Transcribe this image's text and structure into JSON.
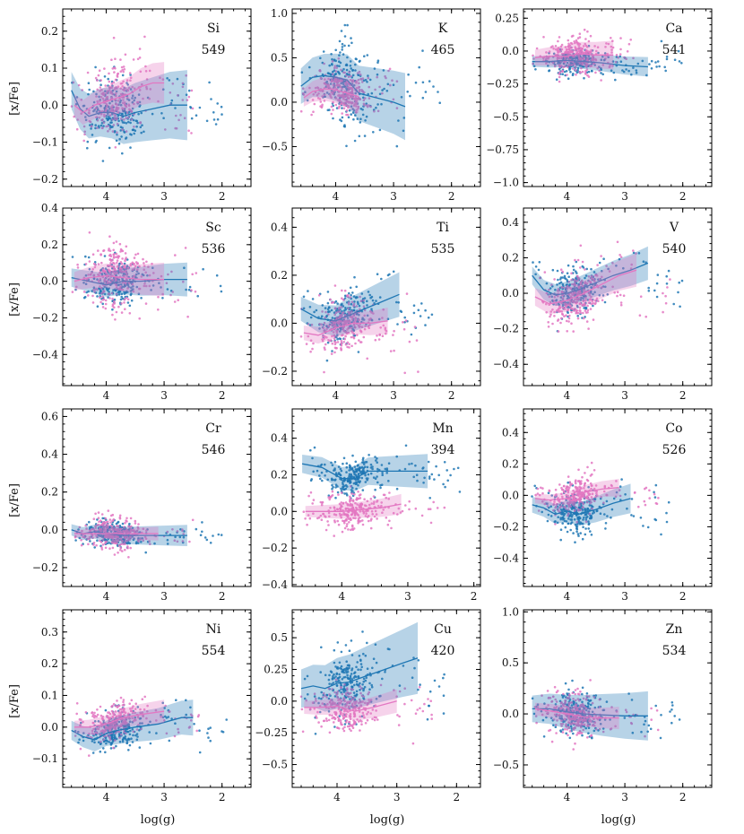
{
  "figure": {
    "xlabel": "log(g)",
    "ylabel": "[x/Fe]",
    "colors": {
      "dwarf": "#e377c2",
      "giant": "#1f77b4",
      "axis": "#000000"
    }
  },
  "chart_data": [
    {
      "type": "scatter",
      "element": "Si",
      "count": "549",
      "xlim": [
        4.75,
        1.5
      ],
      "ylim": [
        -0.22,
        0.26
      ],
      "xticks": [
        4,
        3,
        2
      ],
      "yticks": [
        -0.2,
        -0.1,
        0.0,
        0.1,
        0.2
      ],
      "pink": {
        "line_x": [
          4.55,
          4.4,
          4.2,
          4.0,
          3.8,
          3.6,
          3.4,
          3.2,
          3.0
        ],
        "line_y": [
          0.0,
          -0.02,
          0.0,
          0.01,
          0.02,
          0.03,
          0.05,
          0.06,
          0.06
        ],
        "band": 0.03,
        "cloud": {
          "x": [
            4.6,
            3.0
          ],
          "y": 0.02,
          "sd": 0.05
        }
      },
      "blue": {
        "line_x": [
          4.6,
          4.45,
          4.3,
          4.1,
          3.9,
          3.7,
          3.5,
          3.2,
          2.9,
          2.6
        ],
        "line_y": [
          0.04,
          -0.01,
          -0.03,
          -0.02,
          -0.02,
          -0.03,
          -0.02,
          -0.01,
          0.0,
          0.0
        ],
        "band": 0.05,
        "cloud": {
          "x": [
            4.6,
            2.6
          ],
          "y": -0.02,
          "sd": 0.045
        }
      }
    },
    {
      "type": "scatter",
      "element": "K",
      "count": "465",
      "xlim": [
        4.75,
        1.5
      ],
      "ylim": [
        -0.95,
        1.05
      ],
      "xticks": [
        4,
        3,
        2
      ],
      "yticks": [
        -0.5,
        0.0,
        0.5,
        1.0
      ],
      "pink": {
        "line_x": [
          4.55,
          4.4,
          4.2,
          4.0,
          3.8,
          3.6
        ],
        "line_y": [
          0.05,
          0.12,
          0.15,
          0.14,
          0.1,
          0.06
        ],
        "band": 0.1,
        "cloud": {
          "x": [
            4.6,
            3.5
          ],
          "y": 0.12,
          "sd": 0.12
        }
      },
      "blue": {
        "line_x": [
          4.6,
          4.4,
          4.2,
          4.0,
          3.8,
          3.6,
          3.3,
          3.0,
          2.8
        ],
        "line_y": [
          0.18,
          0.28,
          0.3,
          0.28,
          0.25,
          0.1,
          0.05,
          0.0,
          -0.05
        ],
        "band": 0.2,
        "cloud": {
          "x": [
            4.6,
            2.8
          ],
          "y": 0.22,
          "sd": 0.22
        }
      }
    },
    {
      "type": "scatter",
      "element": "Ca",
      "count": "541",
      "xlim": [
        4.75,
        1.5
      ],
      "ylim": [
        -1.03,
        0.32
      ],
      "xticks": [
        4,
        3,
        2
      ],
      "yticks": [
        -1.0,
        -0.75,
        -0.5,
        -0.25,
        0.0,
        0.25
      ],
      "pink": {
        "line_x": [
          4.55,
          4.3,
          4.0,
          3.8,
          3.5,
          3.2
        ],
        "line_y": [
          -0.05,
          -0.04,
          -0.04,
          -0.02,
          -0.03,
          -0.03
        ],
        "band": 0.06,
        "cloud": {
          "x": [
            4.6,
            3.2
          ],
          "y": -0.04,
          "sd": 0.07
        }
      },
      "blue": {
        "line_x": [
          4.6,
          4.3,
          4.0,
          3.7,
          3.4,
          3.0,
          2.6
        ],
        "line_y": [
          -0.08,
          -0.08,
          -0.07,
          -0.08,
          -0.09,
          -0.11,
          -0.12
        ],
        "band": 0.04,
        "cloud": {
          "x": [
            4.6,
            2.6
          ],
          "y": -0.08,
          "sd": 0.05
        }
      }
    },
    {
      "type": "scatter",
      "element": "Sc",
      "count": "536",
      "xlim": [
        4.75,
        1.5
      ],
      "ylim": [
        -0.57,
        0.4
      ],
      "xticks": [
        4,
        3,
        2
      ],
      "yticks": [
        -0.4,
        -0.2,
        0.0,
        0.2,
        0.4
      ],
      "pink": {
        "line_x": [
          4.55,
          4.3,
          4.0,
          3.7,
          3.4,
          3.0
        ],
        "line_y": [
          0.0,
          0.02,
          0.03,
          0.02,
          0.01,
          0.01
        ],
        "band": 0.05,
        "cloud": {
          "x": [
            4.6,
            3.0
          ],
          "y": 0.01,
          "sd": 0.09
        }
      },
      "blue": {
        "line_x": [
          4.6,
          4.3,
          4.0,
          3.7,
          3.4,
          3.0,
          2.6
        ],
        "line_y": [
          0.02,
          0.0,
          -0.02,
          0.0,
          0.0,
          0.01,
          0.01
        ],
        "band": 0.05,
        "cloud": {
          "x": [
            4.6,
            2.6
          ],
          "y": 0.0,
          "sd": 0.06
        }
      }
    },
    {
      "type": "scatter",
      "element": "Ti",
      "count": "535",
      "xlim": [
        4.75,
        1.5
      ],
      "ylim": [
        -0.26,
        0.48
      ],
      "xticks": [
        4,
        3,
        2
      ],
      "yticks": [
        -0.2,
        0.0,
        0.2,
        0.4
      ],
      "pink": {
        "line_x": [
          4.55,
          4.3,
          4.0,
          3.7,
          3.4,
          3.1
        ],
        "line_y": [
          -0.04,
          -0.05,
          -0.02,
          0.0,
          0.0,
          0.01
        ],
        "band": 0.03,
        "cloud": {
          "x": [
            4.6,
            3.1
          ],
          "y": -0.02,
          "sd": 0.06
        }
      },
      "blue": {
        "line_x": [
          4.6,
          4.3,
          4.0,
          3.8,
          3.5,
          3.2,
          2.9
        ],
        "line_y": [
          0.06,
          0.02,
          0.01,
          0.03,
          0.06,
          0.09,
          0.12
        ],
        "band": 0.05,
        "cloud": {
          "x": [
            4.6,
            2.9
          ],
          "y": 0.04,
          "sd": 0.05
        }
      }
    },
    {
      "type": "scatter",
      "element": "V",
      "count": "540",
      "xlim": [
        4.75,
        1.5
      ],
      "ylim": [
        -0.52,
        0.48
      ],
      "xticks": [
        4,
        3,
        2
      ],
      "yticks": [
        -0.4,
        -0.2,
        0.0,
        0.2,
        0.4
      ],
      "pink": {
        "line_x": [
          4.55,
          4.3,
          4.0,
          3.7,
          3.4,
          3.1,
          2.8
        ],
        "line_y": [
          -0.02,
          -0.06,
          -0.04,
          0.0,
          0.05,
          0.1,
          0.13
        ],
        "band": 0.05,
        "cloud": {
          "x": [
            4.6,
            2.8
          ],
          "y": -0.02,
          "sd": 0.08
        }
      },
      "blue": {
        "line_x": [
          4.6,
          4.4,
          4.2,
          4.0,
          3.8,
          3.5,
          3.2,
          2.9,
          2.6
        ],
        "line_y": [
          0.1,
          0.02,
          -0.01,
          0.0,
          0.02,
          0.06,
          0.1,
          0.13,
          0.17
        ],
        "band": 0.05,
        "cloud": {
          "x": [
            4.6,
            2.6
          ],
          "y": 0.03,
          "sd": 0.07
        }
      }
    },
    {
      "type": "scatter",
      "element": "Cr",
      "count": "546",
      "xlim": [
        4.75,
        1.5
      ],
      "ylim": [
        -0.3,
        0.64
      ],
      "xticks": [
        4,
        3,
        2
      ],
      "yticks": [
        -0.2,
        0.0,
        0.2,
        0.4,
        0.6
      ],
      "pink": {
        "line_x": [
          4.55,
          4.3,
          4.0,
          3.7,
          3.4,
          3.1
        ],
        "line_y": [
          -0.02,
          -0.02,
          -0.02,
          -0.02,
          -0.02,
          -0.02
        ],
        "band": 0.02,
        "cloud": {
          "x": [
            4.6,
            3.1
          ],
          "y": -0.02,
          "sd": 0.04
        }
      },
      "blue": {
        "line_x": [
          4.6,
          4.4,
          4.2,
          4.0,
          3.7,
          3.4,
          3.0,
          2.6
        ],
        "line_y": [
          0.0,
          -0.02,
          -0.01,
          -0.02,
          -0.03,
          -0.03,
          -0.03,
          -0.03
        ],
        "band": 0.03,
        "cloud": {
          "x": [
            4.6,
            2.6
          ],
          "y": -0.02,
          "sd": 0.035
        }
      }
    },
    {
      "type": "scatter",
      "element": "Mn",
      "count": "394",
      "xlim": [
        4.75,
        1.9
      ],
      "ylim": [
        -0.41,
        0.56
      ],
      "xticks": [
        4,
        3,
        2
      ],
      "yticks": [
        -0.4,
        -0.2,
        0.0,
        0.2,
        0.4
      ],
      "pink": {
        "line_x": [
          4.55,
          4.3,
          4.0,
          3.7,
          3.4,
          3.1
        ],
        "line_y": [
          0.0,
          0.0,
          0.0,
          0.01,
          0.02,
          0.04
        ],
        "band": 0.03,
        "cloud": {
          "x": [
            4.6,
            3.0
          ],
          "y": 0.0,
          "sd": 0.05
        }
      },
      "blue": {
        "line_x": [
          4.6,
          4.3,
          4.0,
          3.8,
          3.6,
          3.3,
          3.0,
          2.7
        ],
        "line_y": [
          0.26,
          0.24,
          0.18,
          0.18,
          0.22,
          0.22,
          0.22,
          0.22
        ],
        "band": 0.05,
        "cloud": {
          "x": [
            4.6,
            2.8
          ],
          "y": 0.2,
          "sd": 0.05
        }
      }
    },
    {
      "type": "scatter",
      "element": "Co",
      "count": "526",
      "xlim": [
        4.75,
        1.5
      ],
      "ylim": [
        -0.58,
        0.55
      ],
      "xticks": [
        4,
        3,
        2
      ],
      "yticks": [
        -0.4,
        -0.2,
        0.0,
        0.2,
        0.4
      ],
      "pink": {
        "line_x": [
          4.55,
          4.3,
          4.0,
          3.7,
          3.4,
          3.1
        ],
        "line_y": [
          -0.02,
          -0.03,
          -0.02,
          0.02,
          0.04,
          0.05
        ],
        "band": 0.03,
        "cloud": {
          "x": [
            4.6,
            3.0
          ],
          "y": 0.0,
          "sd": 0.06
        }
      },
      "blue": {
        "line_x": [
          4.6,
          4.4,
          4.2,
          4.0,
          3.8,
          3.5,
          3.2,
          2.9
        ],
        "line_y": [
          -0.06,
          -0.08,
          -0.12,
          -0.1,
          -0.12,
          -0.09,
          -0.05,
          -0.02
        ],
        "band": 0.05,
        "cloud": {
          "x": [
            4.6,
            2.8
          ],
          "y": -0.09,
          "sd": 0.07
        }
      }
    },
    {
      "type": "scatter",
      "element": "Ni",
      "count": "554",
      "xlim": [
        4.75,
        1.5
      ],
      "ylim": [
        -0.19,
        0.37
      ],
      "xticks": [
        4,
        3,
        2
      ],
      "yticks": [
        -0.1,
        0.0,
        0.1,
        0.2,
        0.3
      ],
      "pink": {
        "line_x": [
          4.55,
          4.3,
          4.0,
          3.7,
          3.4,
          3.0
        ],
        "line_y": [
          0.0,
          0.0,
          0.01,
          0.03,
          0.04,
          0.05
        ],
        "band": 0.02,
        "cloud": {
          "x": [
            4.6,
            3.0
          ],
          "y": 0.02,
          "sd": 0.03
        }
      },
      "blue": {
        "line_x": [
          4.6,
          4.4,
          4.2,
          4.0,
          3.8,
          3.5,
          3.1,
          2.7,
          2.5
        ],
        "line_y": [
          -0.01,
          -0.03,
          -0.04,
          -0.02,
          -0.01,
          0.0,
          0.01,
          0.03,
          0.03
        ],
        "band": 0.03,
        "cloud": {
          "x": [
            4.6,
            2.5
          ],
          "y": -0.02,
          "sd": 0.03
        }
      }
    },
    {
      "type": "scatter",
      "element": "Cu",
      "count": "420",
      "xlim": [
        4.75,
        1.6
      ],
      "ylim": [
        -0.68,
        0.72
      ],
      "xticks": [
        4,
        3,
        2
      ],
      "yticks": [
        -0.5,
        -0.25,
        0.0,
        0.25,
        0.5
      ],
      "pink": {
        "line_x": [
          4.55,
          4.3,
          4.0,
          3.7,
          3.4,
          3.0
        ],
        "line_y": [
          -0.05,
          -0.05,
          -0.04,
          -0.08,
          -0.05,
          0.0
        ],
        "band": 0.05,
        "cloud": {
          "x": [
            4.6,
            3.0
          ],
          "y": -0.05,
          "sd": 0.09
        }
      },
      "blue": {
        "line_x": [
          4.6,
          4.4,
          4.2,
          4.0,
          3.8,
          3.5,
          3.2,
          2.9,
          2.65
        ],
        "line_y": [
          0.1,
          0.12,
          0.1,
          0.14,
          0.15,
          0.2,
          0.25,
          0.3,
          0.34
        ],
        "band": 0.15,
        "cloud": {
          "x": [
            4.6,
            2.8
          ],
          "y": 0.12,
          "sd": 0.13
        }
      }
    },
    {
      "type": "scatter",
      "element": "Zn",
      "count": "534",
      "xlim": [
        4.75,
        1.5
      ],
      "ylim": [
        -0.72,
        1.02
      ],
      "xticks": [
        4,
        3,
        2
      ],
      "yticks": [
        -0.5,
        0.0,
        0.5,
        1.0
      ],
      "pink": {
        "line_x": [
          4.55,
          4.3,
          4.0,
          3.7,
          3.4,
          3.1
        ],
        "line_y": [
          0.05,
          0.03,
          0.0,
          -0.03,
          -0.04,
          -0.04
        ],
        "band": 0.06,
        "cloud": {
          "x": [
            4.6,
            3.0
          ],
          "y": 0.02,
          "sd": 0.12
        }
      },
      "blue": {
        "line_x": [
          4.6,
          4.3,
          4.0,
          3.7,
          3.4,
          3.0,
          2.6
        ],
        "line_y": [
          0.05,
          0.05,
          0.02,
          0.0,
          -0.01,
          -0.02,
          -0.02
        ],
        "band": 0.13,
        "cloud": {
          "x": [
            4.6,
            2.6
          ],
          "y": 0.03,
          "sd": 0.1
        }
      }
    }
  ]
}
